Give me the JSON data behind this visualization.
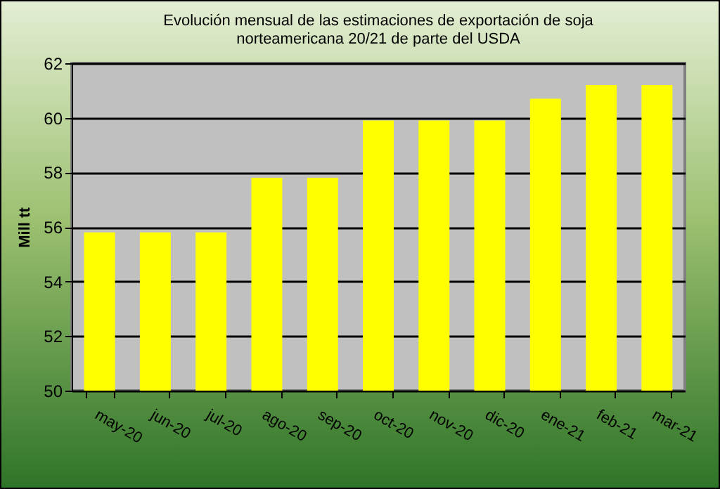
{
  "chart_data": {
    "type": "bar",
    "title": "Evolución mensual de las estimaciones de exportación de soja\nnorteamericana 20/21 de parte del USDA",
    "ylabel": "Mill tt",
    "categories": [
      "may-20",
      "jun-20",
      "jul-20",
      "ago-20",
      "sep-20",
      "oct-20",
      "nov-20",
      "dic-20",
      "ene-21",
      "feb-21",
      "mar-21"
    ],
    "values": [
      55.8,
      55.8,
      55.8,
      57.8,
      57.8,
      59.9,
      59.9,
      59.9,
      60.7,
      61.2,
      61.2
    ],
    "color": "#ffff00",
    "ylim": [
      50,
      62
    ],
    "yticks": [
      50,
      52,
      54,
      56,
      58,
      60,
      62
    ],
    "grid": "y"
  }
}
